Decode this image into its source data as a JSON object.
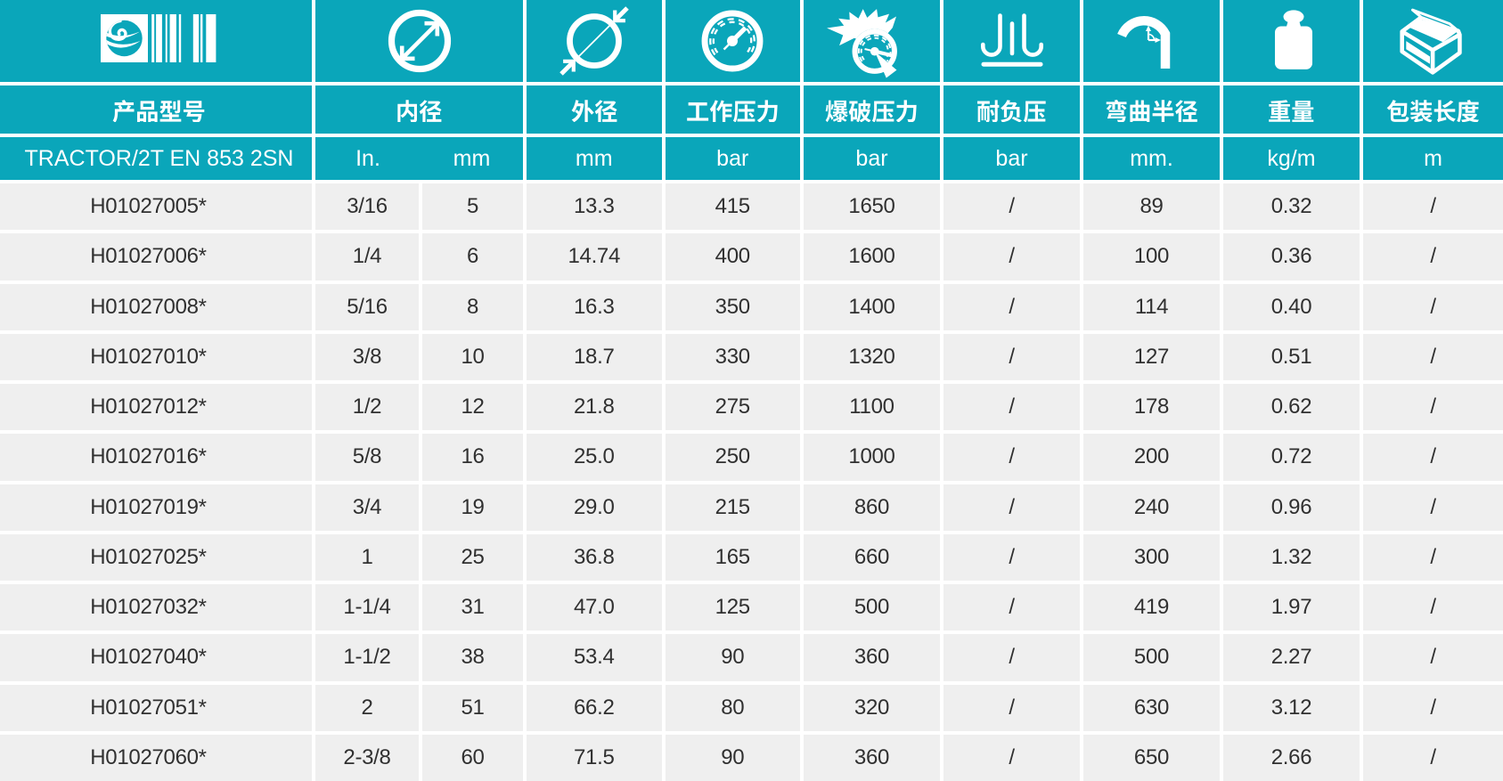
{
  "colors": {
    "teal": "#0aa6ba",
    "row_background": "#efefef",
    "row_text": "#303030",
    "separator": "#ffffff",
    "header_text": "#ffffff"
  },
  "header": {
    "logo_icon": "globe-barcode-logo-icon",
    "product_column": {
      "label": "产品型号",
      "series": "TRACTOR/2T EN 853 2SN"
    },
    "columns": [
      {
        "label": "内径",
        "icon": "inner-diameter-icon",
        "units": [
          "In.",
          "mm"
        ]
      },
      {
        "label": "外径",
        "icon": "outer-diameter-icon",
        "unit": "mm"
      },
      {
        "label": "工作压力",
        "icon": "working-pressure-gauge-icon",
        "unit": "bar"
      },
      {
        "label": "爆破压力",
        "icon": "burst-pressure-gauge-icon",
        "unit": "bar"
      },
      {
        "label": "耐负压",
        "icon": "vacuum-resistance-icon",
        "unit": "bar"
      },
      {
        "label": "弯曲半径",
        "icon": "bend-radius-icon",
        "unit": "mm."
      },
      {
        "label": "重量",
        "icon": "weight-icon",
        "unit": "kg/m"
      },
      {
        "label": "包装长度",
        "icon": "package-length-icon",
        "unit": "m"
      }
    ]
  },
  "table": {
    "rows": [
      {
        "code": "H01027005*",
        "id_in": "3/16",
        "id_mm": "5",
        "od_mm": "13.3",
        "wp_bar": "415",
        "bp_bar": "1650",
        "vacuum_bar": "/",
        "bend_mm": "89",
        "weight_kgm": "0.32",
        "length_m": "/"
      },
      {
        "code": "H01027006*",
        "id_in": "1/4",
        "id_mm": "6",
        "od_mm": "14.74",
        "wp_bar": "400",
        "bp_bar": "1600",
        "vacuum_bar": "/",
        "bend_mm": "100",
        "weight_kgm": "0.36",
        "length_m": "/"
      },
      {
        "code": "H01027008*",
        "id_in": "5/16",
        "id_mm": "8",
        "od_mm": "16.3",
        "wp_bar": "350",
        "bp_bar": "1400",
        "vacuum_bar": "/",
        "bend_mm": "114",
        "weight_kgm": "0.40",
        "length_m": "/"
      },
      {
        "code": "H01027010*",
        "id_in": "3/8",
        "id_mm": "10",
        "od_mm": "18.7",
        "wp_bar": "330",
        "bp_bar": "1320",
        "vacuum_bar": "/",
        "bend_mm": "127",
        "weight_kgm": "0.51",
        "length_m": "/"
      },
      {
        "code": "H01027012*",
        "id_in": "1/2",
        "id_mm": "12",
        "od_mm": "21.8",
        "wp_bar": "275",
        "bp_bar": "1100",
        "vacuum_bar": "/",
        "bend_mm": "178",
        "weight_kgm": "0.62",
        "length_m": "/"
      },
      {
        "code": "H01027016*",
        "id_in": "5/8",
        "id_mm": "16",
        "od_mm": "25.0",
        "wp_bar": "250",
        "bp_bar": "1000",
        "vacuum_bar": "/",
        "bend_mm": "200",
        "weight_kgm": "0.72",
        "length_m": "/"
      },
      {
        "code": "H01027019*",
        "id_in": "3/4",
        "id_mm": "19",
        "od_mm": "29.0",
        "wp_bar": "215",
        "bp_bar": "860",
        "vacuum_bar": "/",
        "bend_mm": "240",
        "weight_kgm": "0.96",
        "length_m": "/"
      },
      {
        "code": "H01027025*",
        "id_in": "1",
        "id_mm": "25",
        "od_mm": "36.8",
        "wp_bar": "165",
        "bp_bar": "660",
        "vacuum_bar": "/",
        "bend_mm": "300",
        "weight_kgm": "1.32",
        "length_m": "/"
      },
      {
        "code": "H01027032*",
        "id_in": "1-1/4",
        "id_mm": "31",
        "od_mm": "47.0",
        "wp_bar": "125",
        "bp_bar": "500",
        "vacuum_bar": "/",
        "bend_mm": "419",
        "weight_kgm": "1.97",
        "length_m": "/"
      },
      {
        "code": "H01027040*",
        "id_in": "1-1/2",
        "id_mm": "38",
        "od_mm": "53.4",
        "wp_bar": "90",
        "bp_bar": "360",
        "vacuum_bar": "/",
        "bend_mm": "500",
        "weight_kgm": "2.27",
        "length_m": "/"
      },
      {
        "code": "H01027051*",
        "id_in": "2",
        "id_mm": "51",
        "od_mm": "66.2",
        "wp_bar": "80",
        "bp_bar": "320",
        "vacuum_bar": "/",
        "bend_mm": "630",
        "weight_kgm": "3.12",
        "length_m": "/"
      },
      {
        "code": "H01027060*",
        "id_in": "2-3/8",
        "id_mm": "60",
        "od_mm": "71.5",
        "wp_bar": "90",
        "bp_bar": "360",
        "vacuum_bar": "/",
        "bend_mm": "650",
        "weight_kgm": "2.66",
        "length_m": "/"
      }
    ]
  }
}
